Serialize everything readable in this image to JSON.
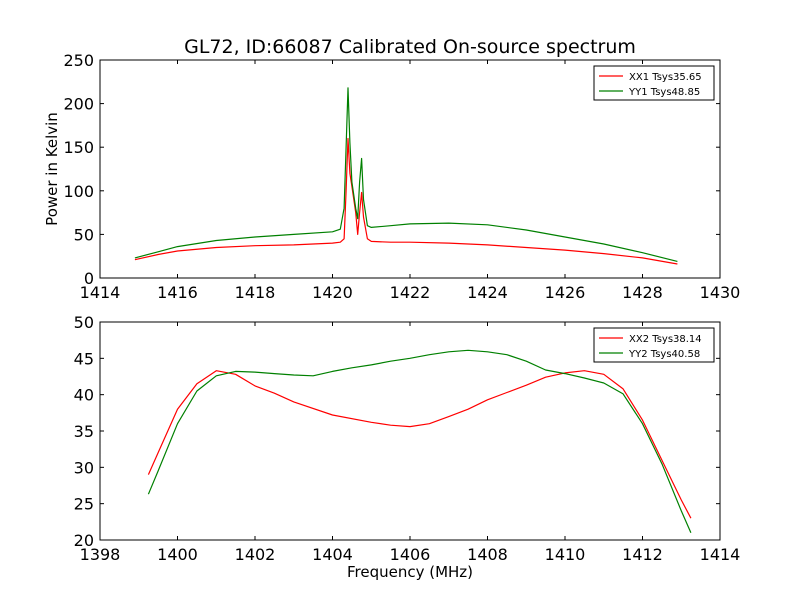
{
  "chart_data": [
    {
      "type": "line",
      "title": "GL72, ID:66087 Calibrated On-source spectrum",
      "xlabel": "",
      "ylabel": "Power in Kelvin",
      "xlim": [
        1414,
        1430
      ],
      "ylim": [
        0,
        250
      ],
      "xticks": [
        1414,
        1416,
        1418,
        1420,
        1422,
        1424,
        1426,
        1428,
        1430
      ],
      "yticks": [
        0,
        50,
        100,
        150,
        200,
        250
      ],
      "grid": false,
      "legend": "top-right",
      "series": [
        {
          "name": "XX1 Tsys35.65",
          "color": "#ff0000",
          "x": [
            1414.9,
            1415.5,
            1416,
            1417,
            1418,
            1419,
            1420,
            1420.2,
            1420.3,
            1420.35,
            1420.4,
            1420.45,
            1420.5,
            1420.6,
            1420.65,
            1420.7,
            1420.75,
            1420.8,
            1420.9,
            1421,
            1421.5,
            1422,
            1423,
            1424,
            1425,
            1426,
            1427,
            1428,
            1428.9
          ],
          "y": [
            21,
            27,
            31,
            35,
            37,
            38,
            40,
            41,
            45,
            100,
            160,
            120,
            105,
            75,
            50,
            75,
            98,
            70,
            45,
            42,
            41,
            41,
            40,
            38,
            35,
            32,
            28,
            23,
            16
          ]
        },
        {
          "name": "YY1 Tsys48.85",
          "color": "#008000",
          "x": [
            1414.9,
            1415.5,
            1416,
            1417,
            1418,
            1419,
            1420,
            1420.2,
            1420.3,
            1420.35,
            1420.4,
            1420.45,
            1420.5,
            1420.6,
            1420.65,
            1420.7,
            1420.75,
            1420.8,
            1420.9,
            1421,
            1421.5,
            1422,
            1423,
            1424,
            1425,
            1426,
            1427,
            1428,
            1428.9
          ],
          "y": [
            23,
            30,
            36,
            43,
            47,
            50,
            53,
            56,
            80,
            150,
            218,
            155,
            110,
            80,
            68,
            110,
            137,
            90,
            60,
            58,
            60,
            62,
            63,
            61,
            55,
            47,
            39,
            29,
            19
          ]
        }
      ]
    },
    {
      "type": "line",
      "title": "",
      "xlabel": "Frequency (MHz)",
      "ylabel": "",
      "xlim": [
        1398,
        1414
      ],
      "ylim": [
        20,
        50
      ],
      "xticks": [
        1398,
        1400,
        1402,
        1404,
        1406,
        1408,
        1410,
        1412,
        1414
      ],
      "yticks": [
        20,
        25,
        30,
        35,
        40,
        45,
        50
      ],
      "grid": false,
      "legend": "top-right",
      "series": [
        {
          "name": "XX2 Tsys38.14",
          "color": "#ff0000",
          "x": [
            1399.25,
            1399.5,
            1400,
            1400.5,
            1401,
            1401.5,
            1402,
            1402.5,
            1403,
            1404,
            1405,
            1405.5,
            1406,
            1406.5,
            1407,
            1407.5,
            1408,
            1408.5,
            1409,
            1409.5,
            1410,
            1410.5,
            1411,
            1411.5,
            1412,
            1412.5,
            1413,
            1413.25
          ],
          "y": [
            29,
            32,
            38,
            41.5,
            43.3,
            42.8,
            41.2,
            40.2,
            39,
            37.2,
            36.2,
            35.8,
            35.6,
            36,
            37,
            38,
            39.3,
            40.3,
            41.3,
            42.4,
            43,
            43.3,
            42.8,
            40.8,
            36.5,
            31,
            25.5,
            23
          ]
        },
        {
          "name": "YY2 Tsys40.58",
          "color": "#008000",
          "x": [
            1399.25,
            1399.5,
            1400,
            1400.5,
            1401,
            1401.5,
            1402,
            1402.5,
            1403,
            1403.5,
            1404,
            1404.5,
            1405,
            1405.5,
            1406,
            1406.5,
            1407,
            1407.5,
            1408,
            1408.5,
            1409,
            1409.5,
            1410,
            1410.5,
            1411,
            1411.5,
            1412,
            1412.5,
            1413,
            1413.25
          ],
          "y": [
            26.3,
            29.5,
            36,
            40.5,
            42.6,
            43.2,
            43.1,
            42.9,
            42.7,
            42.6,
            43.2,
            43.7,
            44.1,
            44.6,
            45,
            45.5,
            45.9,
            46.1,
            45.9,
            45.5,
            44.6,
            43.4,
            42.9,
            42.3,
            41.6,
            40.1,
            36,
            30.5,
            24,
            21
          ]
        }
      ]
    }
  ]
}
